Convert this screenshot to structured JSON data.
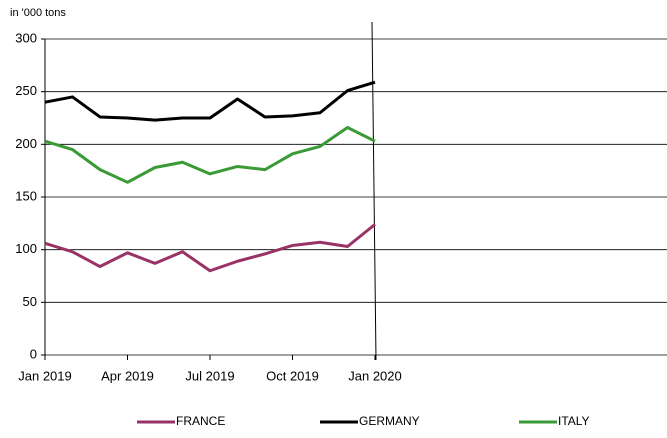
{
  "chart_data": {
    "type": "line",
    "y_axis_label": "in '000 tons",
    "categories": [
      "Jan 2019",
      null,
      null,
      "Apr 2019",
      null,
      null,
      "Jul 2019",
      null,
      null,
      "Oct 2019",
      null,
      null,
      "Jan 2020",
      null,
      null,
      null,
      null,
      null,
      null,
      null,
      null,
      null,
      null
    ],
    "series": [
      {
        "name": "FRANCE",
        "color": "#993366",
        "values": [
          106,
          98,
          84,
          97,
          87,
          98,
          80,
          89,
          96,
          104,
          107,
          103,
          124,
          null,
          null,
          null,
          null,
          null,
          null,
          null,
          null,
          null,
          null
        ]
      },
      {
        "name": "GERMANY",
        "color": "#000000",
        "values": [
          240,
          245,
          226,
          225,
          223,
          225,
          225,
          243,
          226,
          227,
          230,
          251,
          259,
          null,
          null,
          null,
          null,
          null,
          null,
          null,
          null,
          null,
          null
        ]
      },
      {
        "name": "ITALY",
        "color": "#3a9a35",
        "values": [
          203,
          195,
          176,
          164,
          178,
          183,
          172,
          179,
          176,
          191,
          198,
          216,
          203,
          null,
          null,
          null,
          null,
          null,
          null,
          null,
          null,
          null,
          null
        ]
      }
    ],
    "ylim": [
      0,
      300
    ],
    "yticks": [
      0,
      50,
      100,
      150,
      200,
      250,
      300
    ],
    "grid": true,
    "legend": "bottom"
  }
}
